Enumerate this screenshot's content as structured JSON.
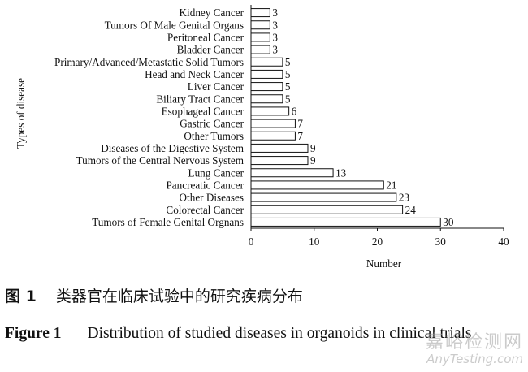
{
  "chart_data": {
    "type": "bar",
    "orientation": "horizontal",
    "title": "",
    "xlabel": "Number",
    "ylabel": "Types of disease",
    "xlim": [
      0,
      40
    ],
    "xticks": [
      0,
      10,
      20,
      30,
      40
    ],
    "grid": false,
    "categories": [
      "Kidney Cancer",
      "Tumors Of Male Genital Organs",
      "Peritoneal Cancer",
      "Bladder Cancer",
      "Primary/Advanced/Metastatic Solid Tumors",
      "Head and Neck Cancer",
      "Liver Cancer",
      "Biliary Tract Cancer",
      "Esophageal Cancer",
      "Gastric Cancer",
      "Other Tumors",
      "Diseases of the Digestive System",
      "Tumors of the Central Nervous System",
      "Lung Cancer",
      "Pancreatic Cancer",
      "Other Diseases",
      "Colorectal Cancer",
      "Tumors of Female Genital Orgnans"
    ],
    "values": [
      3,
      3,
      3,
      3,
      5,
      5,
      5,
      5,
      6,
      7,
      7,
      9,
      9,
      13,
      21,
      23,
      24,
      30
    ]
  },
  "caption": {
    "cn_label": "图 1",
    "cn_text": "类器官在临床试验中的研究疾病分布",
    "en_label": "Figure 1",
    "en_text": "Distribution of studied diseases in organoids in clinical trials"
  },
  "watermark": {
    "cn": "嘉峪检测网",
    "en": "AnyTesting.com"
  }
}
